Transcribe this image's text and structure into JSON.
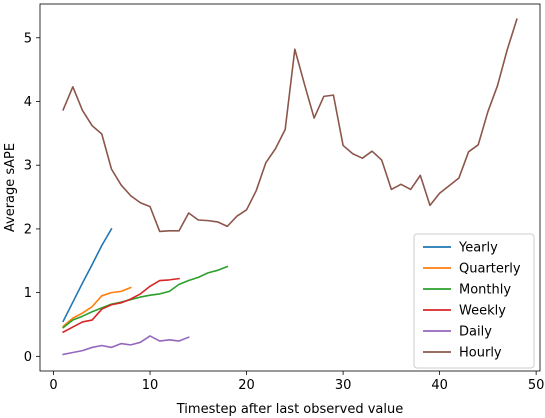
{
  "chart_data": {
    "type": "line",
    "title": "",
    "xlabel": "Timestep after last observed value",
    "ylabel": "Average sAPE",
    "xlim": [
      -1.4,
      50.4
    ],
    "ylim": [
      -0.23,
      5.53
    ],
    "xticks": [
      0,
      10,
      20,
      30,
      40,
      50
    ],
    "yticks": [
      0,
      1,
      2,
      3,
      4,
      5
    ],
    "grid": false,
    "legend_position": "lower-right",
    "series": [
      {
        "name": "Yearly",
        "color": "#1f77b4",
        "x": [
          1,
          2,
          3,
          4,
          5,
          6
        ],
        "y": [
          0.55,
          0.85,
          1.15,
          1.44,
          1.74,
          2.0
        ]
      },
      {
        "name": "Quarterly",
        "color": "#ff7f0e",
        "x": [
          1,
          2,
          3,
          4,
          5,
          6,
          7,
          8
        ],
        "y": [
          0.47,
          0.6,
          0.68,
          0.78,
          0.95,
          1.0,
          1.02,
          1.08
        ]
      },
      {
        "name": "Monthly",
        "color": "#2ca02c",
        "x": [
          1,
          2,
          3,
          4,
          5,
          6,
          7,
          8,
          9,
          10,
          11,
          12,
          13,
          14,
          15,
          16,
          17,
          18
        ],
        "y": [
          0.45,
          0.57,
          0.63,
          0.7,
          0.76,
          0.82,
          0.85,
          0.89,
          0.93,
          0.96,
          0.98,
          1.02,
          1.13,
          1.19,
          1.24,
          1.31,
          1.35,
          1.41
        ]
      },
      {
        "name": "Weekly",
        "color": "#d62728",
        "x": [
          1,
          2,
          3,
          4,
          5,
          6,
          7,
          8,
          9,
          10,
          11,
          12,
          13
        ],
        "y": [
          0.38,
          0.46,
          0.54,
          0.57,
          0.74,
          0.81,
          0.84,
          0.9,
          0.98,
          1.1,
          1.19,
          1.2,
          1.22
        ]
      },
      {
        "name": "Daily",
        "color": "#9467bd",
        "x": [
          1,
          2,
          3,
          4,
          5,
          6,
          7,
          8,
          9,
          10,
          11,
          12,
          13,
          14
        ],
        "y": [
          0.03,
          0.06,
          0.09,
          0.14,
          0.17,
          0.14,
          0.2,
          0.18,
          0.22,
          0.32,
          0.24,
          0.26,
          0.24,
          0.3
        ]
      },
      {
        "name": "Hourly",
        "color": "#8c564b",
        "x": [
          1,
          2,
          3,
          4,
          5,
          6,
          7,
          8,
          9,
          10,
          11,
          12,
          13,
          14,
          15,
          16,
          17,
          18,
          19,
          20,
          21,
          22,
          23,
          24,
          25,
          26,
          27,
          28,
          29,
          30,
          31,
          32,
          33,
          34,
          35,
          36,
          37,
          38,
          39,
          40,
          41,
          42,
          43,
          44,
          45,
          46,
          47,
          48
        ],
        "y": [
          3.87,
          4.23,
          3.86,
          3.62,
          3.49,
          2.94,
          2.69,
          2.52,
          2.41,
          2.35,
          1.96,
          1.97,
          1.97,
          2.25,
          2.14,
          2.13,
          2.11,
          2.04,
          2.2,
          2.3,
          2.6,
          3.04,
          3.26,
          3.56,
          4.82,
          4.27,
          3.74,
          4.08,
          4.1,
          3.31,
          3.18,
          3.11,
          3.22,
          3.08,
          2.62,
          2.7,
          2.62,
          2.84,
          2.37,
          2.56,
          2.68,
          2.8,
          3.21,
          3.32,
          3.84,
          4.25,
          4.81,
          5.29
        ]
      }
    ]
  }
}
